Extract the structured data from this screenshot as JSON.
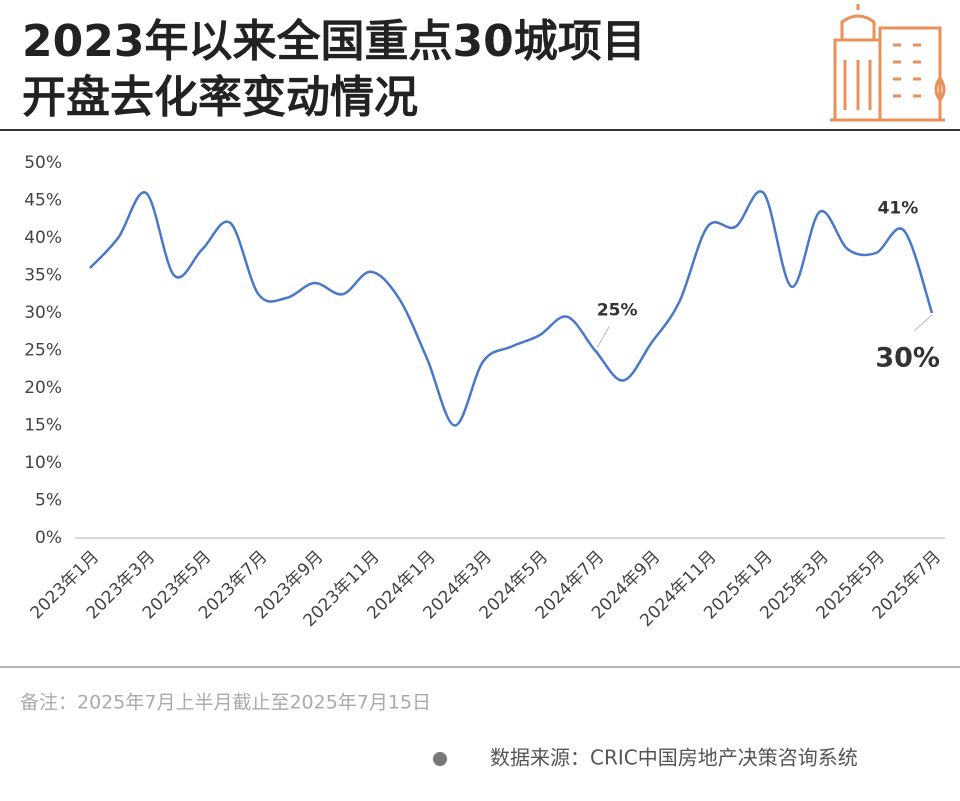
{
  "chart_data": {
    "type": "line",
    "title": [
      "2023年以来全国重点30城项目",
      "开盘去化率变动情况"
    ],
    "categories": [
      "2023年1月",
      null,
      "2023年3月",
      null,
      "2023年5月",
      null,
      "2023年7月",
      null,
      "2023年9月",
      null,
      "2023年11月",
      null,
      "2024年1月",
      null,
      "2024年3月",
      null,
      "2024年5月",
      null,
      "2024年7月",
      null,
      "2024年9月",
      null,
      "2024年11月",
      null,
      "2025年1月",
      null,
      "2025年3月",
      null,
      "2025年5月",
      null,
      "2025年7月"
    ],
    "series": [
      {
        "name": null,
        "color": "#4a78c8",
        "values": [
          36,
          40,
          46,
          35,
          38.5,
          42,
          32.5,
          32,
          34,
          32.5,
          35.5,
          32,
          24,
          15,
          23.5,
          25.5,
          27,
          29.5,
          25,
          21,
          26,
          31.5,
          41.5,
          41.5,
          46,
          33.5,
          43.5,
          38.5,
          38,
          41,
          30
        ],
        "value_labels": [
          null,
          null,
          null,
          null,
          null,
          null,
          null,
          null,
          null,
          null,
          null,
          null,
          null,
          null,
          null,
          null,
          null,
          null,
          "25%",
          null,
          null,
          null,
          null,
          null,
          null,
          null,
          null,
          null,
          null,
          "41%",
          "30%"
        ]
      }
    ],
    "ylim": [
      0,
      50
    ],
    "yticks": [
      {
        "value": 0,
        "label": "0%"
      },
      {
        "value": 5,
        "label": "5%"
      },
      {
        "value": 10,
        "label": "10%"
      },
      {
        "value": 15,
        "label": "15%"
      },
      {
        "value": 20,
        "label": "20%"
      },
      {
        "value": 25,
        "label": "25%"
      },
      {
        "value": 30,
        "label": "30%"
      },
      {
        "value": 35,
        "label": "35%"
      },
      {
        "value": 40,
        "label": "40%"
      },
      {
        "value": 45,
        "label": "45%"
      },
      {
        "value": 50,
        "label": "50%"
      }
    ],
    "note": "备注：2025年7月上半月截止至2025年7月15日",
    "source": "数据来源：CRIC中国房地产决策咨询系统"
  }
}
